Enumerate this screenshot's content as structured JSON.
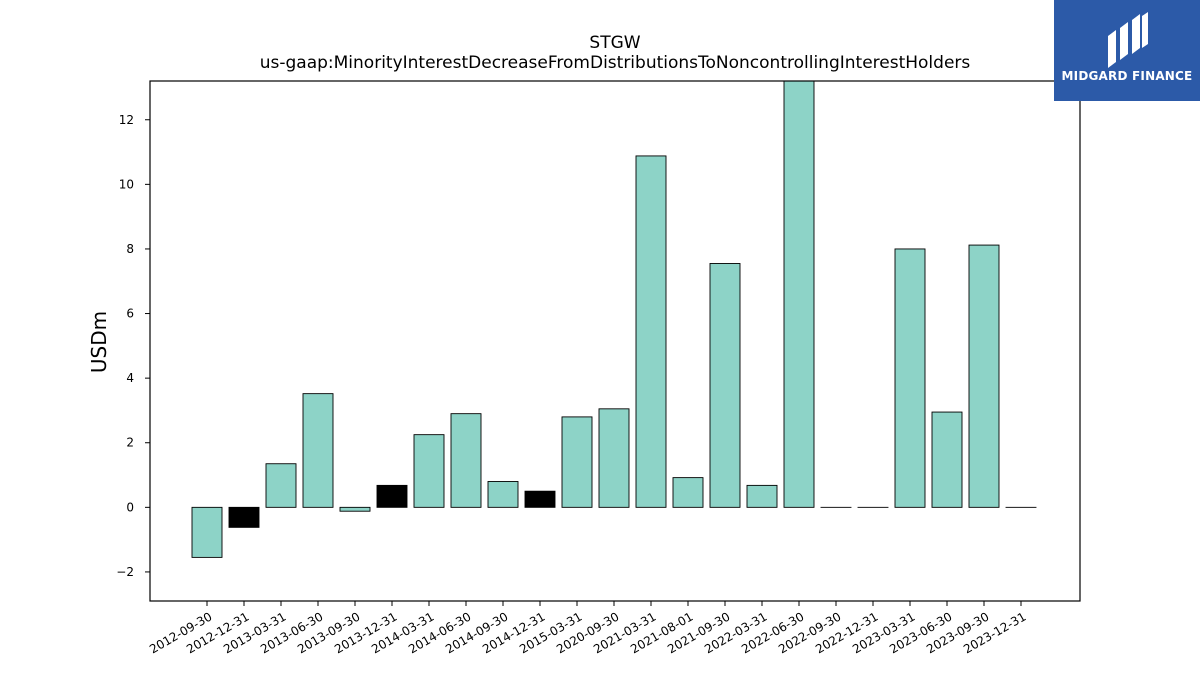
{
  "chart_data": {
    "type": "bar",
    "title": "STGW",
    "subtitle": "us-gaap:MinorityInterestDecreaseFromDistributionsToNoncontrollingInterestHolders",
    "ylabel": "USDm",
    "xlabel": "",
    "ylim": [
      -2.9,
      13.2
    ],
    "yticks": [
      -2,
      0,
      2,
      4,
      6,
      8,
      10,
      12
    ],
    "ytick_labels": [
      "−2",
      "0",
      "2",
      "4",
      "6",
      "8",
      "10",
      "12"
    ],
    "grid": false,
    "legend": "none",
    "categories": [
      "2012-09-30",
      "2012-12-31",
      "2013-03-31",
      "2013-06-30",
      "2013-09-30",
      "2013-12-31",
      "2014-03-31",
      "2014-06-30",
      "2014-09-30",
      "2014-12-31",
      "2015-03-31",
      "2020-09-30",
      "2021-03-31",
      "2021-08-01",
      "2021-09-30",
      "2022-03-31",
      "2022-06-30",
      "2022-09-30",
      "2022-12-31",
      "2023-03-31",
      "2023-06-30",
      "2023-09-30",
      "2023-12-31"
    ],
    "values": [
      -1.55,
      -0.62,
      1.35,
      3.52,
      -0.12,
      0.68,
      2.25,
      2.9,
      0.8,
      0.5,
      2.8,
      3.05,
      10.88,
      0.92,
      7.55,
      0.68,
      13.2,
      0.0,
      0.0,
      8.0,
      2.95,
      8.12,
      0.0
    ],
    "bar_colors": [
      "#8dd3c7",
      "#000000",
      "#8dd3c7",
      "#8dd3c7",
      "#8dd3c7",
      "#000000",
      "#8dd3c7",
      "#8dd3c7",
      "#8dd3c7",
      "#000000",
      "#8dd3c7",
      "#8dd3c7",
      "#8dd3c7",
      "#8dd3c7",
      "#8dd3c7",
      "#8dd3c7",
      "#8dd3c7",
      "#8dd3c7",
      "#8dd3c7",
      "#8dd3c7",
      "#8dd3c7",
      "#8dd3c7",
      "#8dd3c7"
    ]
  },
  "logo": {
    "text": "MIDGARD FINANCE",
    "background": "#2c5aa8"
  }
}
